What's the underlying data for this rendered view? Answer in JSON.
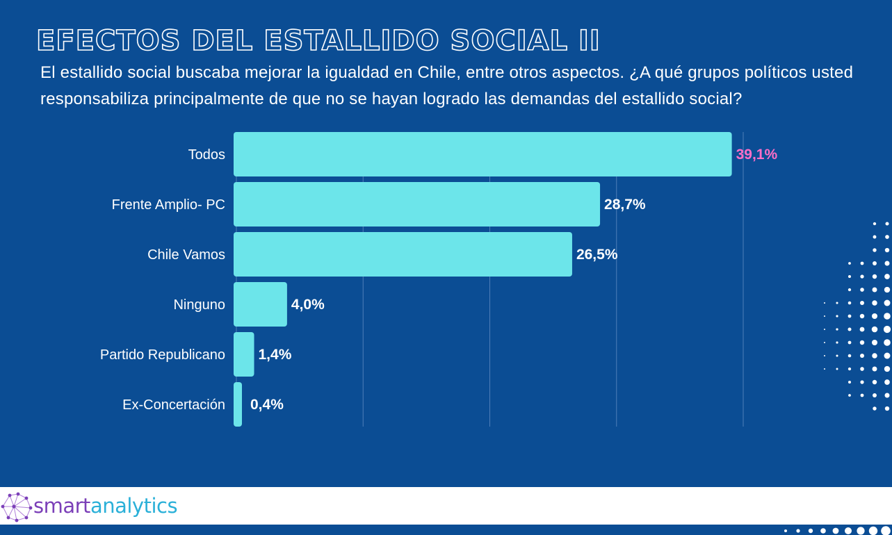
{
  "title": "Efectos del estallido social II",
  "subtitle": "El estallido social buscaba mejorar la igualdad en Chile, entre otros aspectos. ¿A qué grupos políticos usted responsabiliza principalmente de que no se hayan logrado las demandas del estallido social?",
  "logo": {
    "part1": "smart",
    "part2": "analytics"
  },
  "colors": {
    "background": "#0b4d94",
    "bar": "#6ce5ea",
    "highlight_label": "#ff6ec7",
    "label": "#ffffff"
  },
  "chart_data": {
    "type": "bar",
    "orientation": "horizontal",
    "categories": [
      "Todos",
      "Frente Amplio- PC",
      "Chile Vamos",
      "Ninguno",
      "Partido Republicano",
      "Ex-Concertación"
    ],
    "values": [
      39.1,
      28.7,
      26.5,
      4.0,
      1.4,
      0.4
    ],
    "value_labels": [
      "39,1%",
      "28,7%",
      "26,5%",
      "4,0%",
      "1,4%",
      "0,4%"
    ],
    "highlighted_index": 0,
    "xlim": [
      0,
      40
    ],
    "grid": true
  }
}
